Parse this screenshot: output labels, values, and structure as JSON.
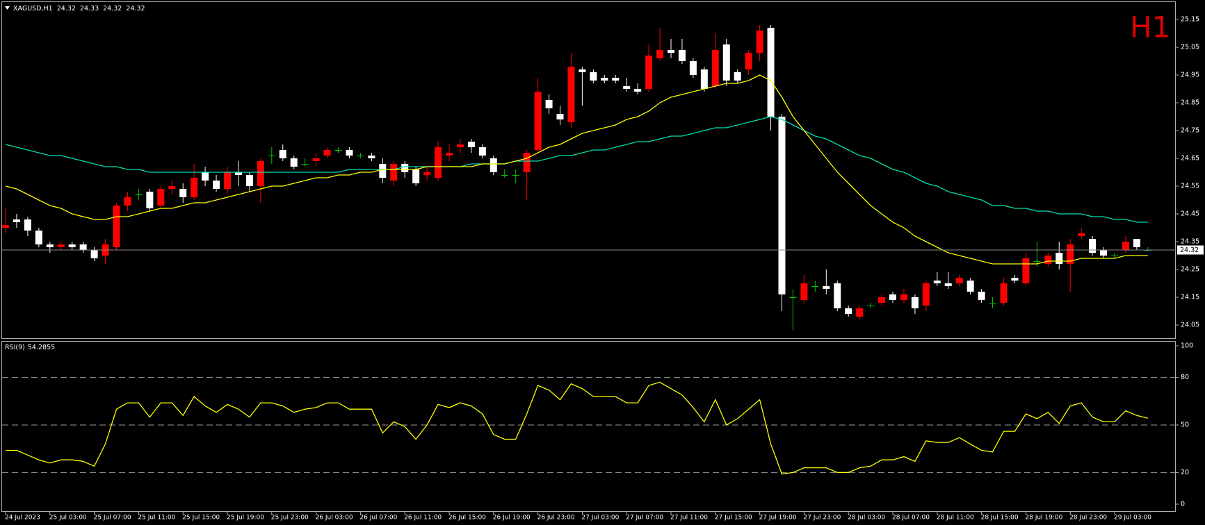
{
  "chart_data": [
    {
      "type": "candlestick",
      "title": "XAGUSD,H1",
      "watermark": "H1",
      "up_color": "#ff0000",
      "down_color": "#ffffff",
      "wick_color": "#00c800",
      "last_line_color": "#8a8a8a",
      "categories": [
        "24 Jul 2023",
        null,
        null,
        null,
        "25 Jul 03:00",
        null,
        null,
        null,
        "25 Jul 07:00",
        null,
        null,
        null,
        "25 Jul 11:00",
        null,
        null,
        null,
        "25 Jul 15:00",
        null,
        null,
        null,
        "25 Jul 19:00",
        null,
        null,
        null,
        "25 Jul 23:00",
        null,
        null,
        null,
        "26 Jul 03:00",
        null,
        null,
        null,
        "26 Jul 07:00",
        null,
        null,
        null,
        "26 Jul 11:00",
        null,
        null,
        null,
        "26 Jul 15:00",
        null,
        null,
        null,
        "26 Jul 19:00",
        null,
        null,
        null,
        "26 Jul 23:00",
        null,
        null,
        null,
        "27 Jul 03:00",
        null,
        null,
        null,
        "27 Jul 07:00",
        null,
        null,
        null,
        "27 Jul 11:00",
        null,
        null,
        null,
        "27 Jul 15:00",
        null,
        null,
        null,
        "27 Jul 19:00",
        null,
        null,
        null,
        "27 Jul 23:00",
        null,
        null,
        null,
        "28 Jul 03:00",
        null,
        null,
        null,
        "28 Jul 07:00",
        null,
        null,
        null,
        "28 Jul 11:00",
        null,
        null,
        null,
        "28 Jul 15:00",
        null,
        null,
        null,
        "28 Jul 19:00",
        null,
        null,
        null,
        "28 Jul 23:00",
        null,
        null,
        null,
        "29 Jul 03:00",
        null,
        null,
        null
      ],
      "open": [
        24.4,
        24.43,
        24.43,
        24.39,
        24.34,
        24.33,
        24.34,
        24.34,
        24.32,
        24.3,
        24.33,
        24.48,
        24.52,
        24.53,
        24.48,
        24.54,
        24.54,
        24.51,
        24.6,
        24.57,
        24.54,
        24.6,
        24.59,
        24.55,
        24.66,
        24.68,
        24.65,
        24.63,
        24.64,
        24.66,
        24.68,
        24.68,
        24.66,
        24.66,
        24.63,
        24.57,
        24.63,
        24.61,
        24.59,
        24.58,
        24.66,
        24.69,
        24.71,
        24.69,
        24.65,
        24.59,
        24.59,
        24.6,
        24.68,
        24.86,
        24.81,
        24.78,
        24.97,
        24.96,
        24.94,
        24.94,
        24.91,
        24.9,
        24.9,
        25.01,
        25.04,
        25.04,
        25.0,
        24.97,
        24.91,
        25.06,
        24.96,
        24.97,
        25.03,
        25.12,
        24.8,
        24.15,
        24.14,
        24.19,
        24.19,
        24.2,
        24.11,
        24.08,
        24.12,
        24.13,
        24.16,
        24.14,
        24.15,
        24.12,
        24.21,
        24.2,
        24.2,
        24.21,
        24.17,
        24.13,
        24.13,
        24.22,
        24.2,
        24.28,
        24.27,
        24.31,
        24.27,
        24.37,
        24.36,
        24.32,
        24.3,
        24.32,
        24.36,
        24.32
      ],
      "high": [
        24.47,
        24.45,
        24.44,
        24.4,
        24.35,
        24.35,
        24.35,
        24.35,
        24.33,
        24.36,
        24.49,
        24.53,
        24.54,
        24.54,
        24.55,
        24.57,
        24.56,
        24.63,
        24.62,
        24.59,
        24.62,
        24.64,
        24.6,
        24.65,
        24.69,
        24.7,
        24.66,
        24.65,
        24.67,
        24.69,
        24.69,
        24.69,
        24.67,
        24.67,
        24.65,
        24.64,
        24.64,
        24.62,
        24.62,
        24.71,
        24.7,
        24.72,
        24.72,
        24.7,
        24.66,
        24.61,
        24.61,
        24.68,
        24.94,
        24.88,
        24.84,
        25.03,
        24.98,
        24.97,
        24.95,
        24.95,
        24.94,
        24.92,
        25.06,
        25.12,
        25.08,
        25.08,
        25.01,
        24.98,
        25.1,
        25.08,
        24.97,
        25.04,
        25.13,
        25.13,
        24.81,
        24.18,
        24.23,
        24.21,
        24.25,
        24.21,
        24.12,
        24.12,
        24.13,
        24.16,
        24.17,
        24.18,
        24.16,
        24.21,
        24.24,
        24.24,
        24.23,
        24.22,
        24.18,
        24.15,
        24.22,
        24.23,
        24.31,
        24.35,
        24.31,
        24.35,
        24.36,
        24.4,
        24.37,
        24.33,
        24.31,
        24.37,
        24.36,
        24.33
      ],
      "low": [
        24.38,
        24.4,
        24.37,
        24.33,
        24.31,
        24.32,
        24.32,
        24.31,
        24.28,
        24.27,
        24.32,
        24.46,
        24.5,
        24.46,
        24.47,
        24.52,
        24.49,
        24.5,
        24.55,
        24.53,
        24.52,
        24.55,
        24.53,
        24.49,
        24.63,
        24.64,
        24.61,
        24.62,
        24.62,
        24.65,
        24.67,
        24.65,
        24.65,
        24.64,
        24.56,
        24.55,
        24.58,
        24.55,
        24.57,
        24.57,
        24.64,
        24.67,
        24.67,
        24.65,
        24.59,
        24.58,
        24.56,
        24.5,
        24.67,
        24.81,
        24.77,
        24.76,
        24.84,
        24.92,
        24.92,
        24.92,
        24.89,
        24.88,
        24.89,
        25.0,
        25.01,
        24.99,
        24.94,
        24.89,
        24.9,
        24.91,
        24.92,
        24.95,
        25.0,
        24.75,
        24.1,
        24.03,
        24.13,
        24.17,
        24.16,
        24.1,
        24.08,
        24.07,
        24.11,
        24.12,
        24.13,
        24.13,
        24.09,
        24.1,
        24.19,
        24.18,
        24.19,
        24.16,
        24.13,
        24.11,
        24.12,
        24.2,
        24.19,
        24.26,
        24.26,
        24.25,
        24.17,
        24.36,
        24.3,
        24.29,
        24.29,
        24.31,
        24.32,
        24.32
      ],
      "close": [
        24.41,
        24.42,
        24.39,
        24.34,
        24.33,
        24.34,
        24.33,
        24.32,
        24.29,
        24.34,
        24.48,
        24.51,
        24.52,
        24.47,
        24.54,
        24.55,
        24.51,
        24.58,
        24.57,
        24.54,
        24.6,
        24.59,
        24.55,
        24.64,
        24.66,
        24.65,
        24.62,
        24.63,
        24.65,
        24.68,
        24.68,
        24.66,
        24.66,
        24.65,
        24.58,
        24.63,
        24.6,
        24.56,
        24.6,
        24.69,
        24.67,
        24.7,
        24.69,
        24.66,
        24.6,
        24.59,
        24.59,
        24.67,
        24.89,
        24.83,
        24.79,
        24.98,
        24.96,
        24.93,
        24.93,
        24.93,
        24.9,
        24.89,
        25.02,
        25.04,
        25.03,
        25.0,
        24.95,
        24.9,
        25.04,
        24.93,
        24.93,
        25.03,
        25.11,
        24.8,
        24.16,
        24.15,
        24.2,
        24.19,
        24.18,
        24.11,
        24.09,
        24.11,
        24.12,
        24.15,
        24.14,
        24.16,
        24.11,
        24.2,
        24.2,
        24.19,
        24.22,
        24.17,
        24.14,
        24.13,
        24.2,
        24.21,
        24.29,
        24.28,
        24.3,
        24.27,
        24.34,
        24.38,
        24.31,
        24.3,
        24.3,
        24.35,
        24.33,
        24.32
      ],
      "series": [
        {
          "color": "#00e0b0",
          "values": [
            24.7,
            24.69,
            24.68,
            24.67,
            24.66,
            24.66,
            24.65,
            24.64,
            24.63,
            24.62,
            24.62,
            24.61,
            24.61,
            24.6,
            24.6,
            24.6,
            24.6,
            24.6,
            24.6,
            24.6,
            24.6,
            24.6,
            24.6,
            24.6,
            24.6,
            24.6,
            24.6,
            24.6,
            24.6,
            24.6,
            24.6,
            24.61,
            24.61,
            24.61,
            24.61,
            24.61,
            24.62,
            24.62,
            24.62,
            24.62,
            24.62,
            24.62,
            24.63,
            24.63,
            24.63,
            24.63,
            24.64,
            24.64,
            24.64,
            24.65,
            24.66,
            24.66,
            24.67,
            24.68,
            24.68,
            24.69,
            24.7,
            24.71,
            24.71,
            24.72,
            24.73,
            24.73,
            24.74,
            24.75,
            24.76,
            24.76,
            24.77,
            24.78,
            24.79,
            24.8,
            24.79,
            24.77,
            24.75,
            24.73,
            24.72,
            24.7,
            24.68,
            24.66,
            24.65,
            24.63,
            24.61,
            24.6,
            24.58,
            24.56,
            24.55,
            24.53,
            24.52,
            24.51,
            24.5,
            24.48,
            24.48,
            24.47,
            24.47,
            24.46,
            24.46,
            24.45,
            24.45,
            24.45,
            24.44,
            24.44,
            24.43,
            24.43,
            24.42,
            24.42
          ]
        },
        {
          "color": "#ffff00",
          "values": [
            24.55,
            24.54,
            24.52,
            24.5,
            24.48,
            24.47,
            24.45,
            24.44,
            24.43,
            24.43,
            24.44,
            24.44,
            24.45,
            24.46,
            24.47,
            24.47,
            24.48,
            24.49,
            24.49,
            24.5,
            24.51,
            24.52,
            24.53,
            24.54,
            24.55,
            24.55,
            24.56,
            24.57,
            24.58,
            24.58,
            24.59,
            24.59,
            24.6,
            24.6,
            24.61,
            24.61,
            24.61,
            24.61,
            24.62,
            24.62,
            24.62,
            24.62,
            24.62,
            24.63,
            24.63,
            24.63,
            24.64,
            24.65,
            24.67,
            24.69,
            24.7,
            24.72,
            24.74,
            24.75,
            24.76,
            24.77,
            24.79,
            24.8,
            24.82,
            24.85,
            24.87,
            24.88,
            24.89,
            24.9,
            24.91,
            24.92,
            24.92,
            24.93,
            24.95,
            24.93,
            24.87,
            24.8,
            24.75,
            24.7,
            24.65,
            24.6,
            24.56,
            24.52,
            24.48,
            24.45,
            24.42,
            24.4,
            24.37,
            24.35,
            24.33,
            24.31,
            24.3,
            24.29,
            24.28,
            24.27,
            24.27,
            24.27,
            24.27,
            24.27,
            24.28,
            24.28,
            24.28,
            24.29,
            24.29,
            24.29,
            24.29,
            24.3,
            24.3,
            24.3
          ]
        }
      ],
      "ylim": [
        24.0,
        25.21
      ],
      "yticks": [
        24.05,
        24.15,
        24.25,
        24.35,
        24.45,
        24.55,
        24.65,
        24.75,
        24.85,
        24.95,
        25.05,
        25.15
      ]
    },
    {
      "type": "line",
      "title": "RSI(9)",
      "color": "#ffff00",
      "level_color": "#9a9a9a",
      "values": [
        34,
        34,
        31,
        28,
        26,
        28,
        28,
        27,
        24,
        38,
        60,
        64,
        64,
        55,
        64,
        64,
        56,
        68,
        62,
        58,
        63,
        60,
        55,
        64,
        64,
        62,
        58,
        60,
        61,
        64,
        64,
        60,
        60,
        60,
        45,
        52,
        49,
        41,
        50,
        63,
        61,
        64,
        62,
        57,
        44,
        41,
        41,
        57,
        75,
        72,
        66,
        76,
        73,
        68,
        68,
        68,
        64,
        64,
        75,
        77,
        73,
        69,
        61,
        52,
        66,
        50,
        54,
        60,
        66,
        38,
        19,
        20,
        23,
        23,
        23,
        20,
        20,
        23,
        24,
        28,
        28,
        30,
        27,
        40,
        39,
        39,
        42,
        38,
        34,
        33,
        46,
        46,
        57,
        54,
        58,
        51,
        62,
        64,
        55,
        52,
        52,
        59,
        56,
        54.2855
      ],
      "ylim": [
        0,
        100
      ],
      "yticks": [
        0,
        20,
        50,
        80,
        100
      ],
      "levels": [
        20,
        50,
        80
      ]
    }
  ]
}
